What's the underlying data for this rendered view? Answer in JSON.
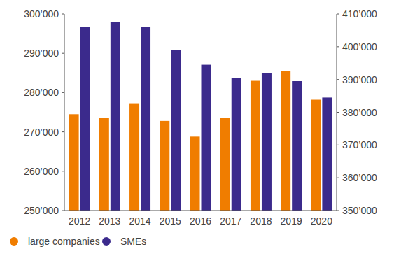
{
  "chart_data": {
    "type": "bar",
    "categories": [
      "2012",
      "2013",
      "2014",
      "2015",
      "2016",
      "2017",
      "2018",
      "2019",
      "2020"
    ],
    "series": [
      {
        "name": "large companies",
        "color": "#f07d00",
        "values": [
          274500,
          273500,
          277300,
          272800,
          268800,
          273500,
          283000,
          285500,
          278200
        ]
      },
      {
        "name": "SMEs",
        "color": "#3b2a8c",
        "axis": "y2",
        "values": [
          406000,
          407500,
          406000,
          399000,
          394500,
          390500,
          392000,
          389500,
          384500
        ]
      }
    ],
    "ylim": [
      250000,
      300000
    ],
    "yticks": [
      {
        "value": 250000,
        "label": "250’000"
      },
      {
        "value": 260000,
        "label": "260’000"
      },
      {
        "value": 270000,
        "label": "270’000"
      },
      {
        "value": 280000,
        "label": "280’000"
      },
      {
        "value": 290000,
        "label": "290’000"
      },
      {
        "value": 300000,
        "label": "300’000"
      }
    ],
    "y2lim": [
      350000,
      410000
    ],
    "y2ticks": [
      {
        "value": 350000,
        "label": "350’000"
      },
      {
        "value": 360000,
        "label": "360’000"
      },
      {
        "value": 370000,
        "label": "370’000"
      },
      {
        "value": 380000,
        "label": "380’000"
      },
      {
        "value": 390000,
        "label": "390’000"
      },
      {
        "value": 400000,
        "label": "400’000"
      },
      {
        "value": 410000,
        "label": "410’000"
      }
    ],
    "grid": false,
    "legend": "bottom-left"
  }
}
